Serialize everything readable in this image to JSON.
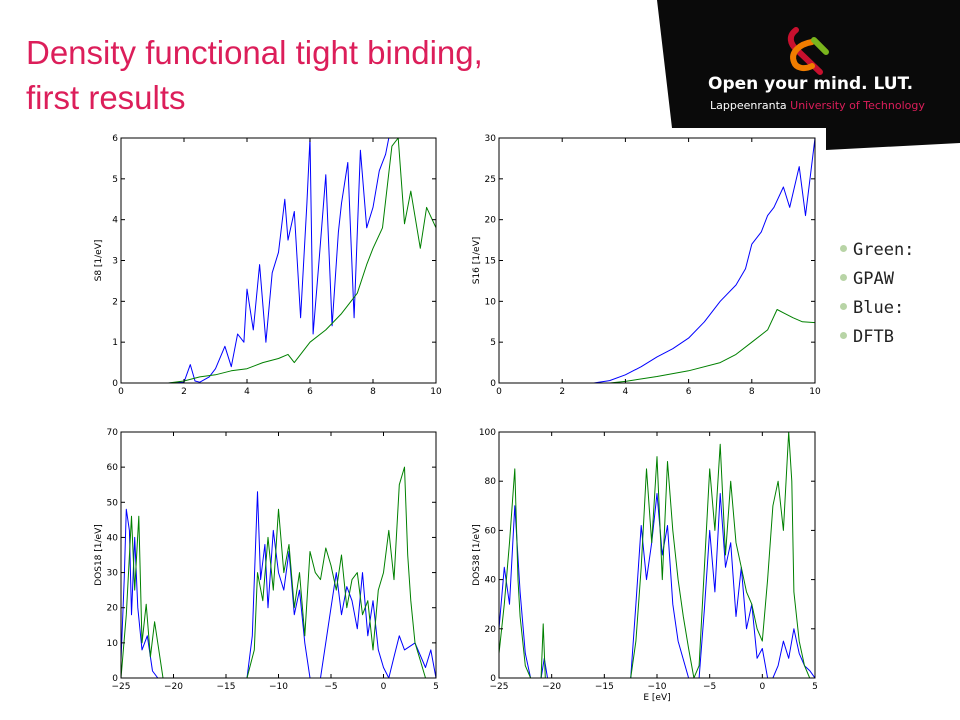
{
  "slide": {
    "title_lines": [
      "Density functional tight binding,",
      "first results"
    ]
  },
  "logo": {
    "main": "Open your mind. LUT.",
    "sub_part1": "Lappeenranta ",
    "sub_part2": "University of Technology",
    "colors": {
      "band": "#0a0a0a",
      "accent": "#dc1e5a",
      "orange": "#f07d00",
      "green": "#7ab51d",
      "red": "#c8102e"
    }
  },
  "legend": [
    "Green:",
    "GPAW",
    "Blue:",
    "DFTB"
  ],
  "colors": {
    "title": "#dc1e5a",
    "blue_series": "#0000ff",
    "green_series": "#008000",
    "bullet": "#b8d4a6"
  },
  "chart_data": [
    {
      "type": "line",
      "ylabel": "S8 [1/eV]",
      "xlabel": "",
      "xlim": [
        0,
        10
      ],
      "ylim": [
        0,
        6
      ],
      "xticks": [
        "0",
        "2",
        "4",
        "6",
        "8",
        "10"
      ],
      "yticks": [
        "0",
        "1",
        "2",
        "3",
        "4",
        "5",
        "6"
      ],
      "series": [
        {
          "color": "#0000ff",
          "x": [
            0,
            1.5,
            2.0,
            2.2,
            2.35,
            2.5,
            2.8,
            3.0,
            3.3,
            3.5,
            3.7,
            3.9,
            4.0,
            4.2,
            4.4,
            4.6,
            4.8,
            5.0,
            5.2,
            5.3,
            5.5,
            5.7,
            5.9,
            6.0,
            6.1,
            6.3,
            6.5,
            6.7,
            6.9,
            7.0,
            7.2,
            7.4,
            7.6,
            7.8,
            8.0,
            8.2,
            8.4,
            8.5,
            8.6
          ],
          "y": [
            0,
            0,
            0.02,
            0.45,
            0.05,
            0.02,
            0.15,
            0.35,
            0.9,
            0.4,
            1.2,
            1.0,
            2.3,
            1.3,
            2.9,
            1.0,
            2.7,
            3.2,
            4.5,
            3.5,
            4.2,
            1.6,
            4.4,
            6.0,
            1.2,
            3.1,
            5.1,
            1.4,
            3.7,
            4.4,
            5.4,
            1.6,
            5.7,
            3.8,
            4.3,
            5.2,
            5.6,
            6.0,
            6.0
          ]
        },
        {
          "color": "#008000",
          "x": [
            0,
            1.5,
            2.0,
            2.5,
            3.0,
            3.5,
            4.0,
            4.5,
            5.0,
            5.3,
            5.5,
            6.0,
            6.5,
            7.0,
            7.5,
            7.8,
            8.0,
            8.3,
            8.6,
            8.8,
            9.0,
            9.2,
            9.5,
            9.7,
            10.0
          ],
          "y": [
            0,
            0,
            0.05,
            0.15,
            0.2,
            0.3,
            0.35,
            0.5,
            0.6,
            0.7,
            0.5,
            1.0,
            1.3,
            1.7,
            2.2,
            2.9,
            3.3,
            3.8,
            5.8,
            6.0,
            3.9,
            4.7,
            3.3,
            4.3,
            3.8
          ]
        }
      ]
    },
    {
      "type": "line",
      "ylabel": "S16 [1/eV]",
      "xlabel": "",
      "xlim": [
        0,
        10
      ],
      "ylim": [
        0,
        30
      ],
      "xticks": [
        "0",
        "2",
        "4",
        "6",
        "8",
        "10"
      ],
      "yticks": [
        "0",
        "5",
        "10",
        "15",
        "20",
        "25",
        "30"
      ],
      "series": [
        {
          "color": "#0000ff",
          "x": [
            0,
            3.0,
            3.5,
            4.0,
            4.5,
            5.0,
            5.5,
            6.0,
            6.5,
            7.0,
            7.5,
            7.8,
            8.0,
            8.3,
            8.5,
            8.7,
            9.0,
            9.2,
            9.5,
            9.7,
            10.0
          ],
          "y": [
            0,
            0,
            0.3,
            1.0,
            2.0,
            3.2,
            4.2,
            5.5,
            7.5,
            10.0,
            12.0,
            14.0,
            17.0,
            18.5,
            20.5,
            21.5,
            24.0,
            21.5,
            26.5,
            20.5,
            30.0
          ]
        },
        {
          "color": "#008000",
          "x": [
            0,
            3.5,
            4.0,
            5.0,
            6.0,
            7.0,
            7.5,
            8.0,
            8.5,
            8.8,
            9.0,
            9.3,
            9.6,
            10.0
          ],
          "y": [
            0,
            0,
            0.2,
            0.8,
            1.5,
            2.5,
            3.5,
            5.0,
            6.5,
            9.0,
            8.6,
            8.0,
            7.5,
            7.4
          ]
        }
      ]
    },
    {
      "type": "line",
      "ylabel": "DOS18 [1/eV]",
      "xlabel": "",
      "xlim": [
        -25,
        5
      ],
      "ylim": [
        0,
        70
      ],
      "xticks": [
        "−25",
        "−20",
        "−15",
        "−10",
        "−5",
        "0",
        "5"
      ],
      "yticks": [
        "0",
        "10",
        "20",
        "30",
        "40",
        "50",
        "60",
        "70"
      ],
      "series": [
        {
          "color": "#0000ff",
          "x": [
            -25,
            -24.7,
            -24.5,
            -24.2,
            -24.0,
            -23.7,
            -23.4,
            -23.0,
            -22.5,
            -22.0,
            -21.5,
            -20.0,
            -17.0,
            -14.0,
            -13.0,
            -12.5,
            -12.0,
            -11.7,
            -11.3,
            -11.0,
            -10.5,
            -10.0,
            -9.5,
            -9.0,
            -8.5,
            -8.0,
            -7.5,
            -7.0,
            -6.0,
            -5.0,
            -4.5,
            -4.0,
            -3.5,
            -3.0,
            -2.5,
            -2.0,
            -1.5,
            -1.0,
            -0.5,
            0.0,
            0.5,
            1.0,
            1.5,
            2.0,
            3.0,
            4.0,
            4.5,
            5.0
          ],
          "y": [
            5,
            28,
            48,
            42,
            18,
            40,
            20,
            8,
            12,
            2,
            0,
            0,
            0,
            0,
            0,
            12,
            53,
            28,
            38,
            20,
            42,
            30,
            25,
            36,
            18,
            25,
            10,
            0,
            0,
            20,
            30,
            18,
            26,
            22,
            14,
            30,
            12,
            22,
            8,
            3,
            0,
            6,
            12,
            8,
            10,
            3,
            8,
            0
          ]
        },
        {
          "color": "#008000",
          "x": [
            -25,
            -24.5,
            -24.0,
            -23.7,
            -23.3,
            -23.0,
            -22.6,
            -22.2,
            -21.8,
            -21.0,
            -20.0,
            -15.0,
            -13.0,
            -12.3,
            -12.0,
            -11.5,
            -11.0,
            -10.5,
            -10.0,
            -9.5,
            -9.0,
            -8.5,
            -8.0,
            -7.5,
            -7.0,
            -6.5,
            -6.0,
            -5.5,
            -5.0,
            -4.5,
            -4.0,
            -3.5,
            -3.0,
            -2.5,
            -2.0,
            -1.5,
            -1.0,
            -0.5,
            0.0,
            0.5,
            1.0,
            1.5,
            2.0,
            2.3,
            2.6,
            3.0,
            3.5,
            4.0,
            4.5,
            5.0
          ],
          "y": [
            0,
            18,
            46,
            25,
            46,
            10,
            21,
            6,
            16,
            0,
            0,
            0,
            0,
            8,
            30,
            22,
            40,
            25,
            48,
            30,
            38,
            20,
            30,
            12,
            36,
            30,
            28,
            37,
            32,
            25,
            35,
            20,
            28,
            30,
            18,
            22,
            8,
            25,
            30,
            42,
            28,
            55,
            60,
            35,
            22,
            10,
            5,
            0,
            0,
            0
          ]
        }
      ]
    },
    {
      "type": "line",
      "ylabel": "DOS38 [1/eV]",
      "xlabel": "E [eV]",
      "xlim": [
        -25,
        5
      ],
      "ylim": [
        0,
        100
      ],
      "xticks": [
        "−25",
        "−20",
        "−15",
        "−10",
        "−5",
        "0",
        "5"
      ],
      "yticks": [
        "0",
        "20",
        "40",
        "60",
        "80",
        "100"
      ],
      "series": [
        {
          "color": "#0000ff",
          "x": [
            -25,
            -24.5,
            -24.0,
            -23.5,
            -23.0,
            -22.5,
            -22.0,
            -21.5,
            -21.0,
            -20.7,
            -20.4,
            -20.0,
            -16.0,
            -13.0,
            -12.5,
            -12.0,
            -11.5,
            -11.0,
            -10.5,
            -10.0,
            -9.5,
            -9.0,
            -8.5,
            -8.0,
            -7.0,
            -6.5,
            -6.0,
            -5.5,
            -5.0,
            -4.5,
            -4.0,
            -3.5,
            -3.0,
            -2.5,
            -2.0,
            -1.5,
            -1.0,
            -0.5,
            0.0,
            0.5,
            1.0,
            1.5,
            2.0,
            2.5,
            3.0,
            3.5,
            4.0,
            4.5,
            5.0
          ],
          "y": [
            20,
            45,
            30,
            70,
            35,
            10,
            0,
            0,
            0,
            8,
            0,
            0,
            0,
            0,
            0,
            30,
            62,
            40,
            55,
            75,
            50,
            62,
            30,
            15,
            0,
            0,
            0,
            28,
            60,
            35,
            75,
            45,
            55,
            25,
            45,
            20,
            30,
            8,
            12,
            0,
            0,
            5,
            15,
            8,
            20,
            10,
            5,
            3,
            0
          ]
        },
        {
          "color": "#008000",
          "x": [
            -25,
            -24.5,
            -24.0,
            -23.5,
            -23.2,
            -23.0,
            -22.5,
            -22.0,
            -21.0,
            -20.8,
            -20.6,
            -20.3,
            -16.0,
            -13.0,
            -12.5,
            -12.0,
            -11.5,
            -11.0,
            -10.5,
            -10.0,
            -9.5,
            -9.0,
            -8.5,
            -8.0,
            -7.5,
            -7.0,
            -6.5,
            -6.0,
            -5.5,
            -5.0,
            -4.5,
            -4.0,
            -3.5,
            -3.0,
            -2.5,
            -2.0,
            -1.5,
            -1.0,
            -0.5,
            0.0,
            0.5,
            1.0,
            1.5,
            2.0,
            2.5,
            2.8,
            3.0,
            3.5,
            4.0,
            4.5,
            5.0
          ],
          "y": [
            10,
            30,
            55,
            85,
            40,
            25,
            5,
            0,
            0,
            22,
            0,
            0,
            0,
            0,
            0,
            15,
            45,
            85,
            55,
            90,
            40,
            88,
            60,
            40,
            25,
            12,
            0,
            5,
            45,
            85,
            60,
            95,
            50,
            80,
            55,
            45,
            35,
            30,
            20,
            15,
            40,
            70,
            80,
            60,
            100,
            80,
            35,
            15,
            5,
            0,
            0
          ]
        }
      ]
    }
  ]
}
